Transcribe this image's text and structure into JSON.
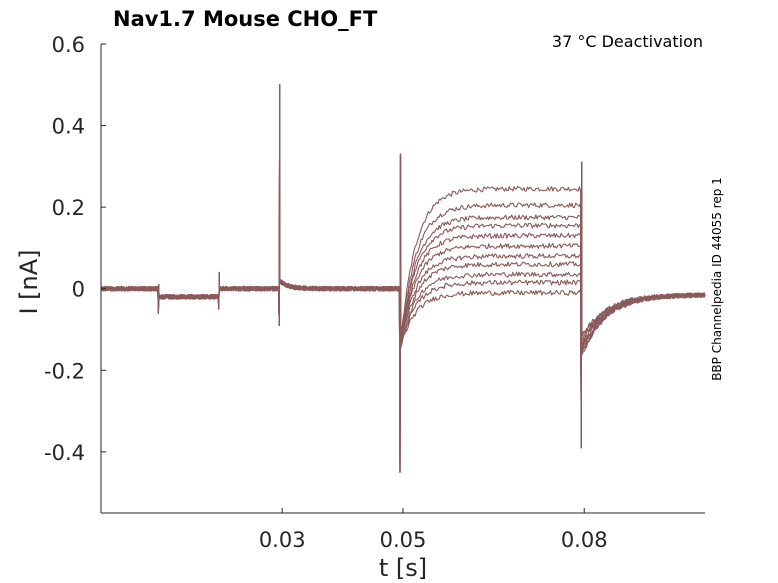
{
  "chart_data": {
    "type": "line",
    "title": "Nav1.7  Mouse  CHO_FT",
    "annotation": "37 °C  Deactivation",
    "side_label": "BBP Channelpedia ID 44055 rep 1",
    "xlabel": "t [s]",
    "ylabel": "I [nA]",
    "xlim": [
      0.0,
      0.1
    ],
    "ylim": [
      -0.55,
      0.6
    ],
    "x_ticks": [
      0.03,
      0.05,
      0.08
    ],
    "x_tick_labels": [
      "0.03",
      "0.05",
      "0.08"
    ],
    "y_ticks": [
      0.6,
      0.4,
      0.2,
      0.0,
      -0.2,
      -0.4
    ],
    "y_tick_labels": [
      "0.6",
      "0.4",
      "0.2",
      "0",
      "-0.2",
      "-0.4"
    ],
    "grid": false,
    "legend": "none",
    "trace_color": "#8b5a5a",
    "protocol": {
      "events": [
        0.0095,
        0.0195,
        0.0295,
        0.0495,
        0.0795
      ],
      "baseline_levels": [
        0.0,
        -0.02,
        0.0,
        0.0,
        0.0,
        -0.015
      ],
      "spike_at_0.03": {
        "peak": 0.5,
        "trough": -0.09
      },
      "spike_at_0.05": {
        "peak": 0.33,
        "trough": -0.45
      },
      "spike_at_0.08": {
        "peak": 0.31,
        "trough": -0.39
      }
    },
    "series": [
      {
        "plateau": 0.245,
        "end_value": -0.015
      },
      {
        "plateau": 0.205,
        "end_value": -0.015
      },
      {
        "plateau": 0.175,
        "end_value": -0.015
      },
      {
        "plateau": 0.155,
        "end_value": -0.015
      },
      {
        "plateau": 0.13,
        "end_value": -0.015
      },
      {
        "plateau": 0.105,
        "end_value": -0.015
      },
      {
        "plateau": 0.08,
        "end_value": -0.015
      },
      {
        "plateau": 0.06,
        "end_value": -0.015
      },
      {
        "plateau": 0.035,
        "end_value": -0.015
      },
      {
        "plateau": 0.015,
        "end_value": -0.015
      },
      {
        "plateau": -0.01,
        "end_value": -0.015
      }
    ]
  }
}
